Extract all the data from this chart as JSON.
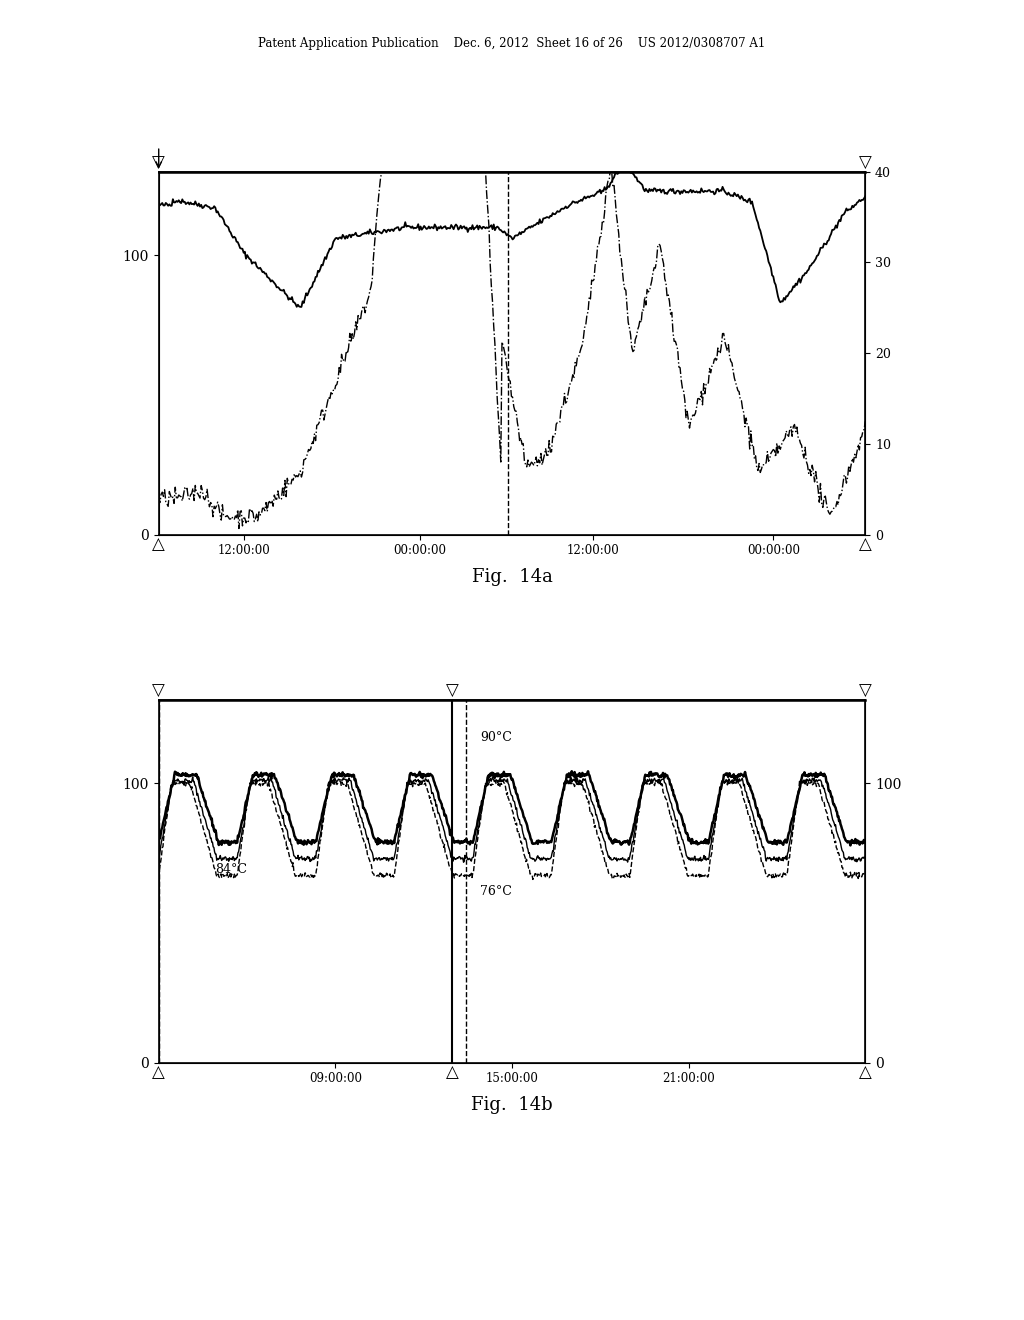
{
  "fig_title_top": "Patent Application Publication    Dec. 6, 2012  Sheet 16 of 26    US 2012/0308707 A1",
  "fig14a_label": "Fig.  14a",
  "fig14b_label": "Fig.  14b",
  "background_color": "#ffffff",
  "text_color": "#000000"
}
